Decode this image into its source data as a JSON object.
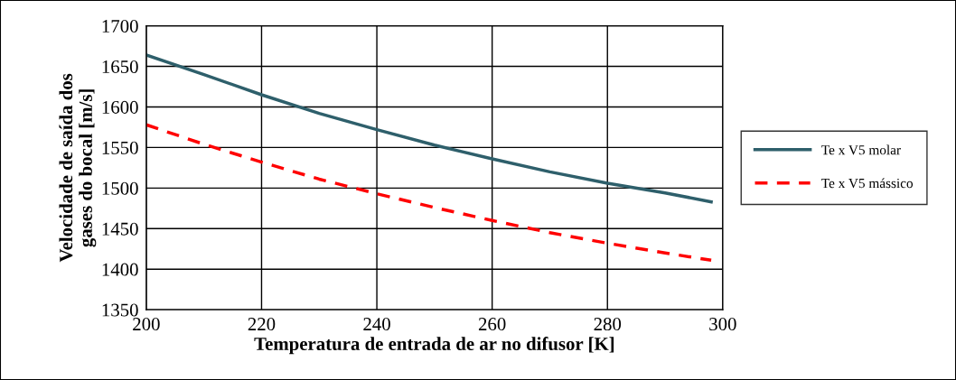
{
  "chart_data": {
    "type": "line",
    "xlabel": "Temperatura de entrada de ar no difusor [K]",
    "ylabel": "Velocidade de saída dos\ngases do bocal [m/s]",
    "x": [
      200,
      210,
      220,
      230,
      240,
      250,
      260,
      270,
      280,
      290,
      298
    ],
    "series": [
      {
        "name": "Te x V5 molar",
        "color": "#2e5f6b",
        "line_style": "solid",
        "values": [
          1664,
          1640,
          1615,
          1592,
          1572,
          1553,
          1536,
          1520,
          1506,
          1494,
          1483
        ]
      },
      {
        "name": "Te x V5 mássico",
        "color": "#ff0000",
        "line_style": "dashed",
        "values": [
          1578,
          1554,
          1532,
          1511,
          1493,
          1476,
          1460,
          1445,
          1432,
          1420,
          1411
        ]
      }
    ],
    "xlim": [
      200,
      300
    ],
    "xticks": [
      200,
      220,
      240,
      260,
      280,
      300
    ],
    "ylim": [
      1350,
      1700
    ],
    "yticks": [
      1350,
      1400,
      1450,
      1500,
      1550,
      1600,
      1650,
      1700
    ],
    "grid": true,
    "legend": "right",
    "marker": "none"
  }
}
